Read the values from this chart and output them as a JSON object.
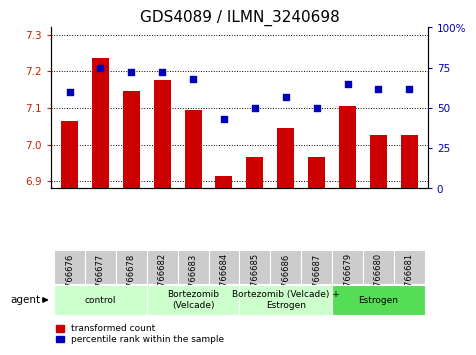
{
  "title": "GDS4089 / ILMN_3240698",
  "samples": [
    "GSM766676",
    "GSM766677",
    "GSM766678",
    "GSM766682",
    "GSM766683",
    "GSM766684",
    "GSM766685",
    "GSM766686",
    "GSM766687",
    "GSM766679",
    "GSM766680",
    "GSM766681"
  ],
  "transformed_counts": [
    7.065,
    7.235,
    7.145,
    7.175,
    7.095,
    6.915,
    6.965,
    7.045,
    6.965,
    7.105,
    7.025,
    7.025
  ],
  "percentile_ranks": [
    60,
    75,
    72,
    72,
    68,
    43,
    50,
    57,
    50,
    65,
    62,
    62
  ],
  "ylim_left": [
    6.88,
    7.32
  ],
  "ylim_right": [
    0,
    100
  ],
  "yticks_left": [
    6.9,
    7.0,
    7.1,
    7.2,
    7.3
  ],
  "yticks_right": [
    0,
    25,
    50,
    75,
    100
  ],
  "ytick_labels_right": [
    "0",
    "25",
    "50",
    "75",
    "100%"
  ],
  "bar_color": "#cc0000",
  "dot_color": "#0000bb",
  "bar_bottom": 6.88,
  "group_spans": [
    {
      "start": 0,
      "end": 2,
      "label": "control",
      "color": "#ccffcc"
    },
    {
      "start": 3,
      "end": 5,
      "label": "Bortezomib\n(Velcade)",
      "color": "#ccffcc"
    },
    {
      "start": 6,
      "end": 8,
      "label": "Bortezomib (Velcade) +\nEstrogen",
      "color": "#ccffcc"
    },
    {
      "start": 9,
      "end": 11,
      "label": "Estrogen",
      "color": "#55dd55"
    }
  ],
  "agent_label": "agent",
  "legend_bar_label": "transformed count",
  "legend_dot_label": "percentile rank within the sample",
  "background_color": "#ffffff",
  "plot_bg_color": "#ffffff",
  "tick_label_color_left": "#cc2200",
  "tick_label_color_right": "#0000bb",
  "title_fontsize": 11,
  "axis_fontsize": 7.5,
  "sample_label_color": "#000000",
  "sample_box_color": "#cccccc"
}
